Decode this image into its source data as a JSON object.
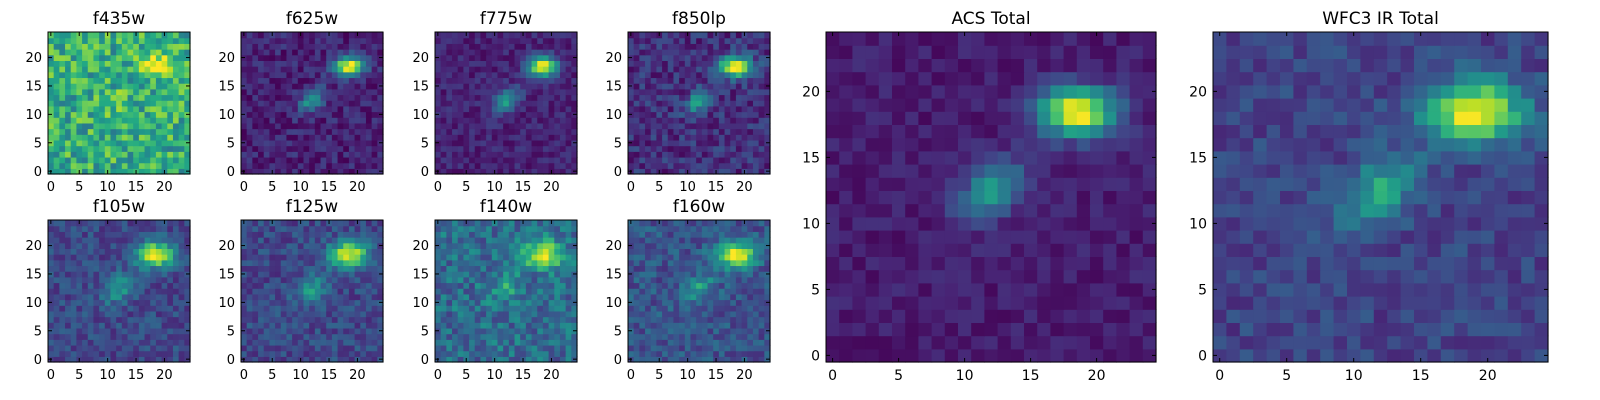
{
  "figure": {
    "background": "#ffffff",
    "colormap": "viridis"
  },
  "chart_data": [
    {
      "type": "heatmap",
      "title": "f435w",
      "grid_size": 25,
      "xticks": [
        0,
        5,
        10,
        15,
        20
      ],
      "yticks": [
        0,
        5,
        10,
        15,
        20
      ],
      "xlim": [
        -0.5,
        24.5
      ],
      "ylim": [
        -0.5,
        24.5
      ],
      "background_level": 0.62,
      "noise": 0.22,
      "sources": [
        {
          "x": 18.5,
          "y": 18.5,
          "amp": 0.55,
          "sigma": 1.6,
          "angle": 0
        },
        {
          "x": 12,
          "y": 12.5,
          "amp": 0.1,
          "sigma": 1.5,
          "angle": 40
        }
      ],
      "seed": 11
    },
    {
      "type": "heatmap",
      "title": "f625w",
      "grid_size": 25,
      "xticks": [
        0,
        5,
        10,
        15,
        20
      ],
      "yticks": [
        0,
        5,
        10,
        15,
        20
      ],
      "xlim": [
        -0.5,
        24.5
      ],
      "ylim": [
        -0.5,
        24.5
      ],
      "background_level": 0.1,
      "noise": 0.1,
      "sources": [
        {
          "x": 18.5,
          "y": 18.5,
          "amp": 0.92,
          "sigma": 1.5,
          "angle": 0
        },
        {
          "x": 12,
          "y": 12.5,
          "amp": 0.42,
          "sigma": 1.5,
          "angle": 40
        }
      ],
      "seed": 23
    },
    {
      "type": "heatmap",
      "title": "f775w",
      "grid_size": 25,
      "xticks": [
        0,
        5,
        10,
        15,
        20
      ],
      "yticks": [
        0,
        5,
        10,
        15,
        20
      ],
      "xlim": [
        -0.5,
        24.5
      ],
      "ylim": [
        -0.5,
        24.5
      ],
      "background_level": 0.1,
      "noise": 0.08,
      "sources": [
        {
          "x": 18.5,
          "y": 18.5,
          "amp": 0.92,
          "sigma": 1.5,
          "angle": 0
        },
        {
          "x": 12,
          "y": 12.5,
          "amp": 0.45,
          "sigma": 1.5,
          "angle": 40
        }
      ],
      "seed": 37
    },
    {
      "type": "heatmap",
      "title": "f850lp",
      "grid_size": 25,
      "xticks": [
        0,
        5,
        10,
        15,
        20
      ],
      "yticks": [
        0,
        5,
        10,
        15,
        20
      ],
      "xlim": [
        -0.5,
        24.5
      ],
      "ylim": [
        -0.5,
        24.5
      ],
      "background_level": 0.14,
      "noise": 0.12,
      "sources": [
        {
          "x": 18.5,
          "y": 18.5,
          "amp": 0.88,
          "sigma": 1.6,
          "angle": 0
        },
        {
          "x": 12,
          "y": 12.5,
          "amp": 0.42,
          "sigma": 1.5,
          "angle": 40
        }
      ],
      "seed": 41
    },
    {
      "type": "heatmap",
      "title": "f105w",
      "grid_size": 25,
      "xticks": [
        0,
        5,
        10,
        15,
        20
      ],
      "yticks": [
        0,
        5,
        10,
        15,
        20
      ],
      "xlim": [
        -0.5,
        24.5
      ],
      "ylim": [
        -0.5,
        24.5
      ],
      "background_level": 0.22,
      "noise": 0.11,
      "sources": [
        {
          "x": 18.5,
          "y": 18.5,
          "amp": 0.78,
          "sigma": 1.9,
          "angle": 0
        },
        {
          "x": 12,
          "y": 12.5,
          "amp": 0.32,
          "sigma": 1.8,
          "angle": 40
        }
      ],
      "seed": 53
    },
    {
      "type": "heatmap",
      "title": "f125w",
      "grid_size": 25,
      "xticks": [
        0,
        5,
        10,
        15,
        20
      ],
      "yticks": [
        0,
        5,
        10,
        15,
        20
      ],
      "xlim": [
        -0.5,
        24.5
      ],
      "ylim": [
        -0.5,
        24.5
      ],
      "background_level": 0.22,
      "noise": 0.11,
      "sources": [
        {
          "x": 18.5,
          "y": 18.5,
          "amp": 0.78,
          "sigma": 1.9,
          "angle": 0
        },
        {
          "x": 12,
          "y": 12.5,
          "amp": 0.32,
          "sigma": 1.8,
          "angle": 40
        }
      ],
      "seed": 67
    },
    {
      "type": "heatmap",
      "title": "f140w",
      "grid_size": 25,
      "xticks": [
        0,
        5,
        10,
        15,
        20
      ],
      "yticks": [
        0,
        5,
        10,
        15,
        20
      ],
      "xlim": [
        -0.5,
        24.5
      ],
      "ylim": [
        -0.5,
        24.5
      ],
      "background_level": 0.35,
      "noise": 0.16,
      "sources": [
        {
          "x": 18.5,
          "y": 18.5,
          "amp": 0.62,
          "sigma": 2.0,
          "angle": 0
        },
        {
          "x": 12,
          "y": 12.5,
          "amp": 0.22,
          "sigma": 1.8,
          "angle": 40
        }
      ],
      "seed": 79
    },
    {
      "type": "heatmap",
      "title": "f160w",
      "grid_size": 25,
      "xticks": [
        0,
        5,
        10,
        15,
        20
      ],
      "yticks": [
        0,
        5,
        10,
        15,
        20
      ],
      "xlim": [
        -0.5,
        24.5
      ],
      "ylim": [
        -0.5,
        24.5
      ],
      "background_level": 0.26,
      "noise": 0.12,
      "sources": [
        {
          "x": 18.5,
          "y": 18.5,
          "amp": 0.76,
          "sigma": 1.9,
          "angle": 0
        },
        {
          "x": 12,
          "y": 12.5,
          "amp": 0.3,
          "sigma": 1.8,
          "angle": 40
        }
      ],
      "seed": 83
    },
    {
      "type": "heatmap",
      "title": "ACS Total",
      "grid_size": 25,
      "xticks": [
        0,
        5,
        10,
        15,
        20
      ],
      "yticks": [
        0,
        5,
        10,
        15,
        20
      ],
      "xlim": [
        -0.5,
        24.5
      ],
      "ylim": [
        -0.5,
        24.5
      ],
      "background_level": 0.08,
      "noise": 0.06,
      "sources": [
        {
          "x": 18.5,
          "y": 18.5,
          "amp": 0.95,
          "sigma": 1.6,
          "angle": 0
        },
        {
          "x": 12,
          "y": 12.5,
          "amp": 0.45,
          "sigma": 1.6,
          "angle": 40
        }
      ],
      "seed": 97
    },
    {
      "type": "heatmap",
      "title": "WFC3 IR Total",
      "grid_size": 25,
      "xticks": [
        0,
        5,
        10,
        15,
        20
      ],
      "yticks": [
        0,
        5,
        10,
        15,
        20
      ],
      "xlim": [
        -0.5,
        24.5
      ],
      "ylim": [
        -0.5,
        24.5
      ],
      "background_level": 0.2,
      "noise": 0.09,
      "sources": [
        {
          "x": 19,
          "y": 18.5,
          "amp": 0.82,
          "sigma": 2.0,
          "angle": 0
        },
        {
          "x": 12,
          "y": 12.5,
          "amp": 0.42,
          "sigma": 1.8,
          "angle": 40
        }
      ],
      "seed": 101
    }
  ]
}
